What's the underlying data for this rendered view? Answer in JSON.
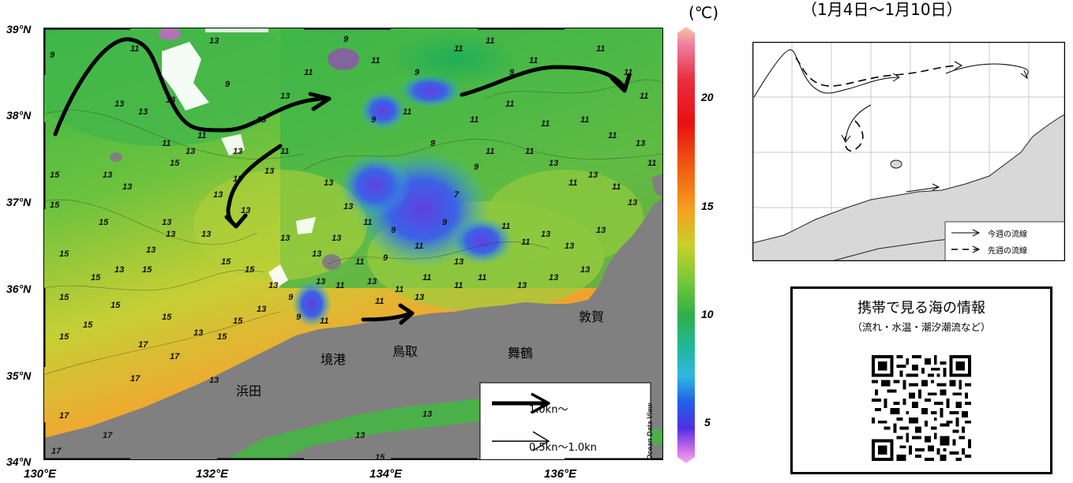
{
  "header": {
    "period": "（1月4日～1月10日）"
  },
  "map": {
    "lat_labels": [
      "39°N",
      "38°N",
      "37°N",
      "36°N",
      "35°N",
      "34°N"
    ],
    "lon_labels": [
      "130°E",
      "132°E",
      "134°E",
      "136°E"
    ],
    "contour_labels": [
      "9",
      "11",
      "13",
      "15",
      "17"
    ],
    "place_names": {
      "hamada": "浜田",
      "sakaiminato": "境港",
      "tottori": "鳥取",
      "maizuru": "舞鶴",
      "tsuruga": "敦賀"
    },
    "watermark": "Ocean Data View",
    "land_color": "#808080"
  },
  "legend": {
    "strong": "1.0kn～",
    "weak": "0.5kn～1.0kn"
  },
  "colorbar": {
    "unit": "(℃)",
    "ticks": [
      "20",
      "15",
      "10",
      "5"
    ],
    "range": [
      3,
      23
    ]
  },
  "inset": {
    "legend_this_week": "今週の流線",
    "legend_last_week": "先週の流線"
  },
  "qr": {
    "title": "携帯で見る海の情報",
    "subtitle": "（流れ・水温・潮汐潮流など）"
  }
}
